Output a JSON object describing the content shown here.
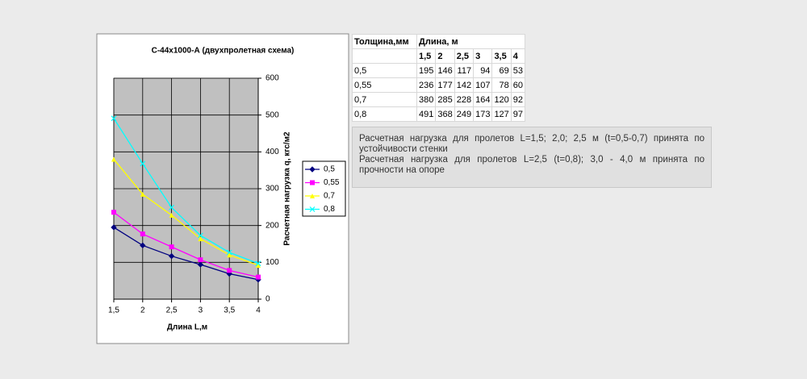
{
  "chart_data": {
    "type": "line",
    "title": "С-44х1000-А (двухпролетная схема)",
    "x_label": "Длина L,м",
    "y_label": "Расчетная нагрузка q, кгс/м2",
    "categories": [
      "1,5",
      "2",
      "2,5",
      "3",
      "3,5",
      "4"
    ],
    "series": [
      {
        "name": "0,5",
        "color": "#000080",
        "marker": "diamond",
        "values": [
          195,
          146,
          117,
          94,
          69,
          53
        ]
      },
      {
        "name": "0,55",
        "color": "#ff00ff",
        "marker": "square",
        "values": [
          236,
          177,
          142,
          107,
          78,
          60
        ]
      },
      {
        "name": "0,7",
        "color": "#ffff00",
        "marker": "triangle",
        "values": [
          380,
          285,
          228,
          164,
          120,
          92
        ]
      },
      {
        "name": "0,8",
        "color": "#00ffff",
        "marker": "x",
        "values": [
          491,
          368,
          249,
          173,
          127,
          97
        ]
      }
    ],
    "ylim": [
      0,
      600
    ],
    "yticks": [
      0,
      100,
      200,
      300,
      400,
      500,
      600
    ],
    "y_axis_side": "right",
    "grid": true,
    "plot_background": "#c0c0c0",
    "legend": "right"
  },
  "table": {
    "header": [
      "Толщина,мм",
      "Длина, м"
    ],
    "lengths": [
      "1,5",
      "2",
      "2,5",
      "3",
      "3,5",
      "4"
    ],
    "rows": [
      {
        "label": "0,5",
        "values": [
          195,
          146,
          117,
          94,
          69,
          53
        ]
      },
      {
        "label": "0,55",
        "values": [
          236,
          177,
          142,
          107,
          78,
          60
        ]
      },
      {
        "label": "0,7",
        "values": [
          380,
          285,
          228,
          164,
          120,
          92
        ]
      },
      {
        "label": "0,8",
        "values": [
          491,
          368,
          249,
          173,
          127,
          97
        ]
      }
    ]
  },
  "note": {
    "paragraphs": [
      "Расчетная нагрузка для пролетов L=1,5; 2,0; 2,5 м (t=0,5-0,7) принята по устойчивости стенки",
      "Расчетная нагрузка для пролетов L=2,5 (t=0,8); 3,0 - 4,0 м принята по прочности на опоре"
    ]
  }
}
